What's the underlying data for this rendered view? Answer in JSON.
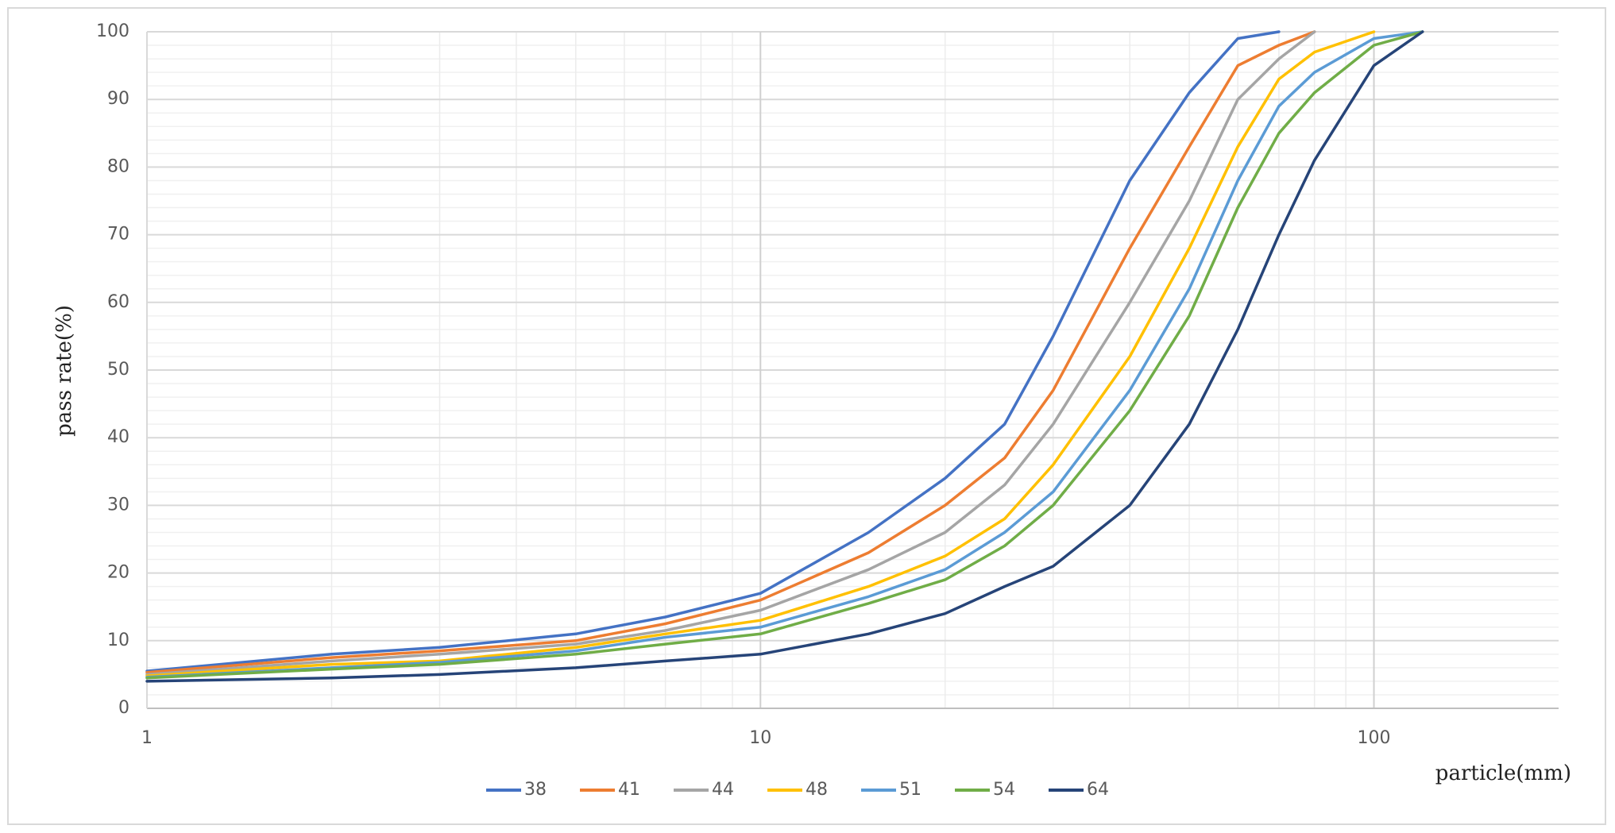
{
  "chart_data": {
    "type": "line",
    "xlabel": "particle(mm)",
    "ylabel": "pass rate(%)",
    "x": [
      1,
      2,
      3,
      5,
      7,
      10,
      15,
      20,
      25,
      30,
      40,
      50,
      60,
      70,
      80,
      100,
      120
    ],
    "xlog": true,
    "xlim": [
      1,
      200
    ],
    "xticks": [
      1,
      10,
      100
    ],
    "ylim": [
      0,
      100
    ],
    "yticks": [
      0,
      10,
      20,
      30,
      40,
      50,
      60,
      70,
      80,
      90,
      100
    ],
    "grid": true,
    "minor_grid": true,
    "legend": "bottom",
    "series": [
      {
        "name": "38",
        "color": "#4472c4",
        "values": [
          5.5,
          8,
          9,
          11,
          13.5,
          17,
          26,
          34,
          42,
          55,
          78,
          91,
          99,
          100,
          null,
          null,
          null
        ]
      },
      {
        "name": "41",
        "color": "#ed7d31",
        "values": [
          5.3,
          7.5,
          8.5,
          10,
          12.5,
          16,
          23,
          30,
          37,
          47,
          68,
          83,
          95,
          98,
          100,
          null,
          null
        ]
      },
      {
        "name": "44",
        "color": "#a5a5a5",
        "values": [
          5,
          7,
          8,
          9.5,
          11.5,
          14.5,
          20.5,
          26,
          33,
          42,
          60,
          75,
          90,
          96,
          100,
          null,
          null
        ]
      },
      {
        "name": "48",
        "color": "#ffc000",
        "values": [
          4.8,
          6.5,
          7,
          9,
          11,
          13,
          18,
          22.5,
          28,
          36,
          52,
          68,
          83,
          93,
          97,
          100,
          null
        ]
      },
      {
        "name": "51",
        "color": "#5b9bd5",
        "values": [
          4.6,
          6,
          6.8,
          8.5,
          10.5,
          12,
          16.5,
          20.5,
          26,
          32,
          47,
          62,
          78,
          89,
          94,
          99,
          100
        ]
      },
      {
        "name": "54",
        "color": "#70ad47",
        "values": [
          4.5,
          5.8,
          6.5,
          8,
          9.5,
          11,
          15.5,
          19,
          24,
          30,
          44,
          58,
          74,
          85,
          91,
          98,
          100
        ]
      },
      {
        "name": "64",
        "color": "#264478",
        "values": [
          4,
          4.5,
          5,
          6,
          7,
          8,
          11,
          14,
          18,
          21,
          30,
          42,
          56,
          70,
          81,
          95,
          100
        ]
      }
    ]
  }
}
